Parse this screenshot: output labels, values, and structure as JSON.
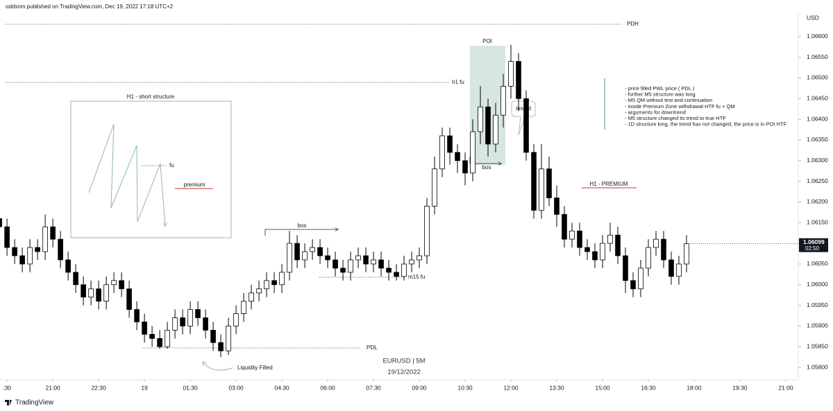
{
  "header": {
    "title": "oddsnm published on TradingView.com, Dec 19, 2022 17:18 UTC+2"
  },
  "chart_data": {
    "type": "candlestick",
    "currency": "USD",
    "up_color": "#ffffff",
    "down_color": "#000000",
    "grid": false,
    "xlim": [
      19.27,
      45.41
    ],
    "ylim": [
      1.05775,
      1.06655
    ],
    "xticks": [
      {
        "value": 19.5,
        "label": ":30"
      },
      {
        "value": 21,
        "label": "21:00"
      },
      {
        "value": 22.5,
        "label": "22:30"
      },
      {
        "value": 24,
        "label": "19"
      },
      {
        "value": 25.5,
        "label": "01:30"
      },
      {
        "value": 27,
        "label": "03:00"
      },
      {
        "value": 28.5,
        "label": "04:30"
      },
      {
        "value": 30,
        "label": "06:00"
      },
      {
        "value": 31.5,
        "label": "07:30"
      },
      {
        "value": 33,
        "label": "09:00"
      },
      {
        "value": 34.5,
        "label": "10:30"
      },
      {
        "value": 36,
        "label": "12:00"
      },
      {
        "value": 37.5,
        "label": "13:30"
      },
      {
        "value": 39,
        "label": "15:00"
      },
      {
        "value": 40.5,
        "label": "16:30"
      },
      {
        "value": 42,
        "label": "18:00"
      },
      {
        "value": 43.5,
        "label": "19:30"
      },
      {
        "value": 45,
        "label": "21:00"
      }
    ],
    "yticks": [
      {
        "value": 1.058,
        "label": "1.05800"
      },
      {
        "value": 1.0585,
        "label": "1.05850"
      },
      {
        "value": 1.059,
        "label": "1.05900"
      },
      {
        "value": 1.0595,
        "label": "1.05950"
      },
      {
        "value": 1.06,
        "label": "1.06000"
      },
      {
        "value": 1.0605,
        "label": "1.06050"
      },
      {
        "value": 1.061,
        "label": "1.06100"
      },
      {
        "value": 1.0615,
        "label": "1.06150"
      },
      {
        "value": 1.062,
        "label": "1.06200"
      },
      {
        "value": 1.0625,
        "label": "1.06250"
      },
      {
        "value": 1.063,
        "label": "1.06300"
      },
      {
        "value": 1.0635,
        "label": "1.06350"
      },
      {
        "value": 1.064,
        "label": "1.06400"
      },
      {
        "value": 1.0645,
        "label": "1.06450"
      },
      {
        "value": 1.065,
        "label": "1.06500"
      },
      {
        "value": 1.0655,
        "label": "1.06550"
      },
      {
        "value": 1.066,
        "label": "1.06600"
      }
    ],
    "x": [
      19.25,
      19.5,
      19.75,
      20,
      20.25,
      20.5,
      20.75,
      21,
      21.25,
      21.5,
      21.75,
      22,
      22.25,
      22.5,
      22.75,
      23,
      23.25,
      23.5,
      23.75,
      24,
      24.25,
      24.5,
      24.75,
      25,
      25.25,
      25.5,
      25.75,
      26,
      26.25,
      26.5,
      26.75,
      27,
      27.25,
      27.5,
      27.75,
      28,
      28.25,
      28.5,
      28.75,
      29,
      29.25,
      29.5,
      29.75,
      30,
      30.25,
      30.5,
      30.75,
      31,
      31.25,
      31.5,
      31.75,
      32,
      32.25,
      32.5,
      32.75,
      33,
      33.25,
      33.5,
      33.75,
      34,
      34.25,
      34.5,
      34.75,
      35,
      35.25,
      35.5,
      35.75,
      36,
      36.25,
      36.5,
      36.75,
      37,
      37.25,
      37.5,
      37.75,
      38,
      38.25,
      38.5,
      38.75,
      39,
      39.25,
      39.5,
      39.75,
      40,
      40.25,
      40.5,
      40.75,
      41,
      41.25,
      41.5,
      41.75
    ],
    "open": [
      1.0616,
      1.0614,
      1.0609,
      1.0607,
      1.0605,
      1.0609,
      1.0608,
      1.0614,
      1.0611,
      1.0606,
      1.0603,
      1.06,
      1.0597,
      1.0599,
      1.0596,
      1.06,
      1.0601,
      1.0599,
      1.0594,
      1.0591,
      1.0588,
      1.0587,
      1.0585,
      1.0589,
      1.0592,
      1.059,
      1.0594,
      1.0592,
      1.0589,
      1.0586,
      1.0584,
      1.059,
      1.0593,
      1.0596,
      1.0598,
      1.0599,
      1.0601,
      1.06,
      1.0603,
      1.061,
      1.0606,
      1.0608,
      1.0609,
      1.0607,
      1.0606,
      1.0604,
      1.0603,
      1.0606,
      1.0607,
      1.0605,
      1.0606,
      1.0604,
      1.0603,
      1.0602,
      1.0605,
      1.0606,
      1.0607,
      1.0619,
      1.0628,
      1.0636,
      1.0632,
      1.063,
      1.0627,
      1.0637,
      1.0643,
      1.0634,
      1.0641,
      1.0648,
      1.0654,
      1.0645,
      1.0632,
      1.0618,
      1.0628,
      1.0621,
      1.0617,
      1.0611,
      1.0613,
      1.0609,
      1.0608,
      1.0606,
      1.061,
      1.0612,
      1.0607,
      1.0601,
      1.0599,
      1.0604,
      1.0609,
      1.0611,
      1.0606,
      1.0602,
      1.0605
    ],
    "high": [
      1.0618,
      1.0616,
      1.0611,
      1.0609,
      1.0611,
      1.0611,
      1.0617,
      1.0616,
      1.0613,
      1.0608,
      1.0605,
      1.0602,
      1.0601,
      1.0601,
      1.0602,
      1.0603,
      1.0603,
      1.0601,
      1.0596,
      1.0593,
      1.059,
      1.0589,
      1.0591,
      1.0594,
      1.0594,
      1.0596,
      1.0596,
      1.0594,
      1.0591,
      1.0588,
      1.0592,
      1.0595,
      1.0598,
      1.06,
      1.0601,
      1.0603,
      1.0603,
      1.0605,
      1.0613,
      1.0612,
      1.061,
      1.0611,
      1.0611,
      1.0609,
      1.0608,
      1.0606,
      1.0608,
      1.0609,
      1.0609,
      1.0608,
      1.0608,
      1.0606,
      1.0605,
      1.0607,
      1.0608,
      1.0609,
      1.0621,
      1.0631,
      1.0638,
      1.0638,
      1.0634,
      1.0632,
      1.064,
      1.0648,
      1.0645,
      1.0644,
      1.0651,
      1.0658,
      1.0656,
      1.0647,
      1.0634,
      1.0634,
      1.0631,
      1.0624,
      1.0619,
      1.0615,
      1.0615,
      1.0611,
      1.061,
      1.0612,
      1.0615,
      1.0614,
      1.0609,
      1.0603,
      1.0606,
      1.0611,
      1.0613,
      1.0613,
      1.0608,
      1.0607,
      1.0612
    ],
    "low": [
      1.0612,
      1.0607,
      1.0605,
      1.0603,
      1.0603,
      1.0606,
      1.0606,
      1.0609,
      1.0604,
      1.0601,
      1.0598,
      1.0595,
      1.0595,
      1.0594,
      1.0594,
      1.0598,
      1.0597,
      1.0592,
      1.0589,
      1.0586,
      1.0585,
      1.05845,
      1.05845,
      1.0587,
      1.0588,
      1.0588,
      1.059,
      1.0587,
      1.0584,
      1.05825,
      1.0583,
      1.0588,
      1.0591,
      1.0594,
      1.0596,
      1.0597,
      1.0598,
      1.0598,
      1.0601,
      1.0604,
      1.0604,
      1.0606,
      1.0605,
      1.0604,
      1.0602,
      1.0601,
      1.0601,
      1.0604,
      1.0603,
      1.0603,
      1.0602,
      1.0601,
      1.0601,
      1.0601,
      1.0603,
      1.0604,
      1.0605,
      1.0617,
      1.0626,
      1.0629,
      1.0627,
      1.0624,
      1.0625,
      1.0634,
      1.0631,
      1.0632,
      1.0638,
      1.0645,
      1.0642,
      1.063,
      1.0616,
      1.0616,
      1.0619,
      1.0614,
      1.0609,
      1.0609,
      1.0607,
      1.0606,
      1.0604,
      1.0604,
      1.0608,
      1.0605,
      1.0598,
      1.0597,
      1.0597,
      1.0602,
      1.0607,
      1.0604,
      1.06,
      1.06,
      1.0603
    ],
    "close": [
      1.0614,
      1.0609,
      1.0607,
      1.0605,
      1.0609,
      1.0608,
      1.0614,
      1.0611,
      1.0606,
      1.0603,
      1.06,
      1.0597,
      1.0599,
      1.0596,
      1.06,
      1.0601,
      1.0599,
      1.0594,
      1.0591,
      1.0588,
      1.0587,
      1.0585,
      1.0589,
      1.0592,
      1.059,
      1.0594,
      1.0592,
      1.0589,
      1.0586,
      1.0584,
      1.059,
      1.0593,
      1.0596,
      1.0598,
      1.0599,
      1.0601,
      1.06,
      1.0603,
      1.061,
      1.0606,
      1.0608,
      1.0609,
      1.0607,
      1.0606,
      1.0604,
      1.0603,
      1.0606,
      1.0607,
      1.0605,
      1.0606,
      1.0604,
      1.0603,
      1.0602,
      1.0605,
      1.0606,
      1.0607,
      1.0619,
      1.0628,
      1.0636,
      1.0632,
      1.063,
      1.0627,
      1.0637,
      1.0643,
      1.0634,
      1.0641,
      1.0648,
      1.0654,
      1.0645,
      1.0632,
      1.0618,
      1.0628,
      1.0621,
      1.0617,
      1.0611,
      1.0613,
      1.0609,
      1.0608,
      1.0606,
      1.061,
      1.0612,
      1.0607,
      1.0601,
      1.0599,
      1.0604,
      1.0609,
      1.0611,
      1.0606,
      1.0602,
      1.0605,
      1.06099
    ],
    "countdown": "02:50"
  },
  "annotations": {
    "pdh": "PDH",
    "h1_fu": "h1 fu",
    "poi": "POI",
    "tested": "tested",
    "bos_poi": "bos",
    "bos_mid": "bos",
    "m15_fu": "m15 fu",
    "pdl": "PDL",
    "liquidity": "Liquidity Filled",
    "symbol": "EURUSD | 5M",
    "date": "19/12/2022",
    "structure_title": "H1 - short structure",
    "structure_fu": "fu",
    "structure_premium": "premium",
    "h1_premium": "H1 - PREMIUM",
    "notes": [
      "- price filled PWL price ( PDL )",
      "- further M5 structure was long",
      "- M5 QM without test and continuation",
      "- inside Premium Zone withdrawal HTF fu + QM",
      "- arguments for downtrend",
      "- M5 structure changed its trend to true HTF",
      "- 1D structure long, the trend has not changed, the price is in POI HTF"
    ]
  },
  "footer": {
    "brand": "TradingView"
  }
}
